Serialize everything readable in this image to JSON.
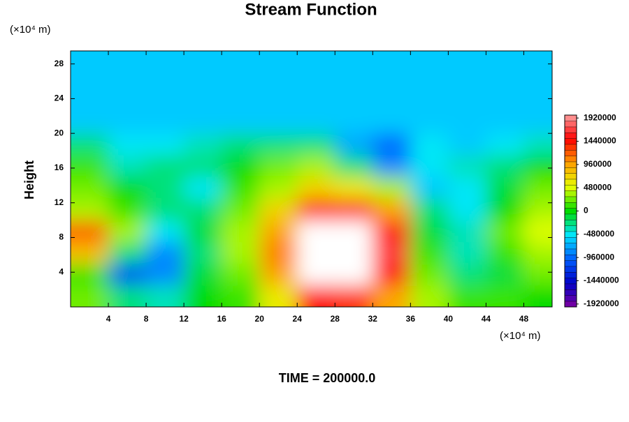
{
  "chart_data": {
    "type": "contour",
    "title": "Stream Function",
    "ylabel": "Height",
    "y_unit": "(×10⁴ m)",
    "x_unit": "(×10⁴ m)",
    "footer": "TIME = 200000.0",
    "xlim": [
      0,
      51
    ],
    "ylim": [
      0,
      29.5
    ],
    "xticks": [
      4,
      8,
      12,
      16,
      20,
      24,
      28,
      32,
      36,
      40,
      44,
      48
    ],
    "yticks": [
      4,
      8,
      12,
      16,
      20,
      24,
      28
    ],
    "x": [
      2,
      6,
      10,
      14,
      18,
      22,
      26,
      30,
      34,
      38,
      42,
      46,
      50
    ],
    "y": [
      1.25,
      3.75,
      6.25,
      8.75,
      11.25,
      13.75,
      16.25,
      18.75,
      21.25,
      23.75,
      26.25,
      28.75
    ],
    "z": [
      [
        200000,
        -200000,
        -400000,
        0,
        100000,
        600000,
        1400000,
        1300000,
        1000000,
        300000,
        100000,
        100000,
        0
      ],
      [
        100000,
        -1100000,
        -900000,
        -100000,
        200000,
        900000,
        2200000,
        2400000,
        1600000,
        200000,
        -300000,
        -100000,
        200000
      ],
      [
        800000,
        -300000,
        -900000,
        -200000,
        300000,
        1100000,
        2400000,
        2600000,
        1700000,
        100000,
        -400000,
        100000,
        400000
      ],
      [
        1200000,
        300000,
        -500000,
        -100000,
        300000,
        1000000,
        2300000,
        2400000,
        1500000,
        -100000,
        -400000,
        200000,
        500000
      ],
      [
        400000,
        100000,
        -300000,
        -300000,
        200000,
        700000,
        1400000,
        1500000,
        900000,
        -200000,
        -500000,
        0,
        300000
      ],
      [
        200000,
        0,
        -200000,
        -500000,
        100000,
        400000,
        700000,
        600000,
        300000,
        -600000,
        -500000,
        -100000,
        200000
      ],
      [
        100000,
        -400000,
        -200000,
        -300000,
        0,
        200000,
        300000,
        -300000,
        -800000,
        -500000,
        -400000,
        -300000,
        0
      ],
      [
        -300000,
        -500000,
        -500000,
        -400000,
        -300000,
        -200000,
        -300000,
        -700000,
        -1000000,
        -500000,
        -600000,
        -500000,
        -400000
      ],
      [
        -600000,
        -650000,
        -600000,
        -600000,
        -600000,
        -600000,
        -600000,
        -600000,
        -650000,
        -600000,
        -600000,
        -600000,
        -600000
      ],
      [
        -600000,
        -600000,
        -600000,
        -600000,
        -600000,
        -600000,
        -600000,
        -600000,
        -600000,
        -600000,
        -600000,
        -600000,
        -600000
      ],
      [
        -600000,
        -600000,
        -600000,
        -600000,
        -600000,
        -600000,
        -600000,
        -600000,
        -600000,
        -600000,
        -600000,
        -600000,
        -600000
      ],
      [
        -600000,
        -600000,
        -600000,
        -600000,
        -600000,
        -600000,
        -600000,
        -600000,
        -600000,
        -600000,
        -600000,
        -600000,
        -600000
      ]
    ],
    "zlim": [
      -1980000,
      1980000
    ],
    "zstep": 120000,
    "zticks": [
      1920000,
      1440000,
      960000,
      480000,
      0,
      -480000,
      -960000,
      -1440000,
      -1920000
    ],
    "colormap": [
      "#8000a0",
      "#0000c8",
      "#0060ff",
      "#00e6ff",
      "#00dc00",
      "#e6ff00",
      "#ffa000",
      "#ff0000",
      "#ffa0a0"
    ],
    "over_color": "#ffffff"
  }
}
